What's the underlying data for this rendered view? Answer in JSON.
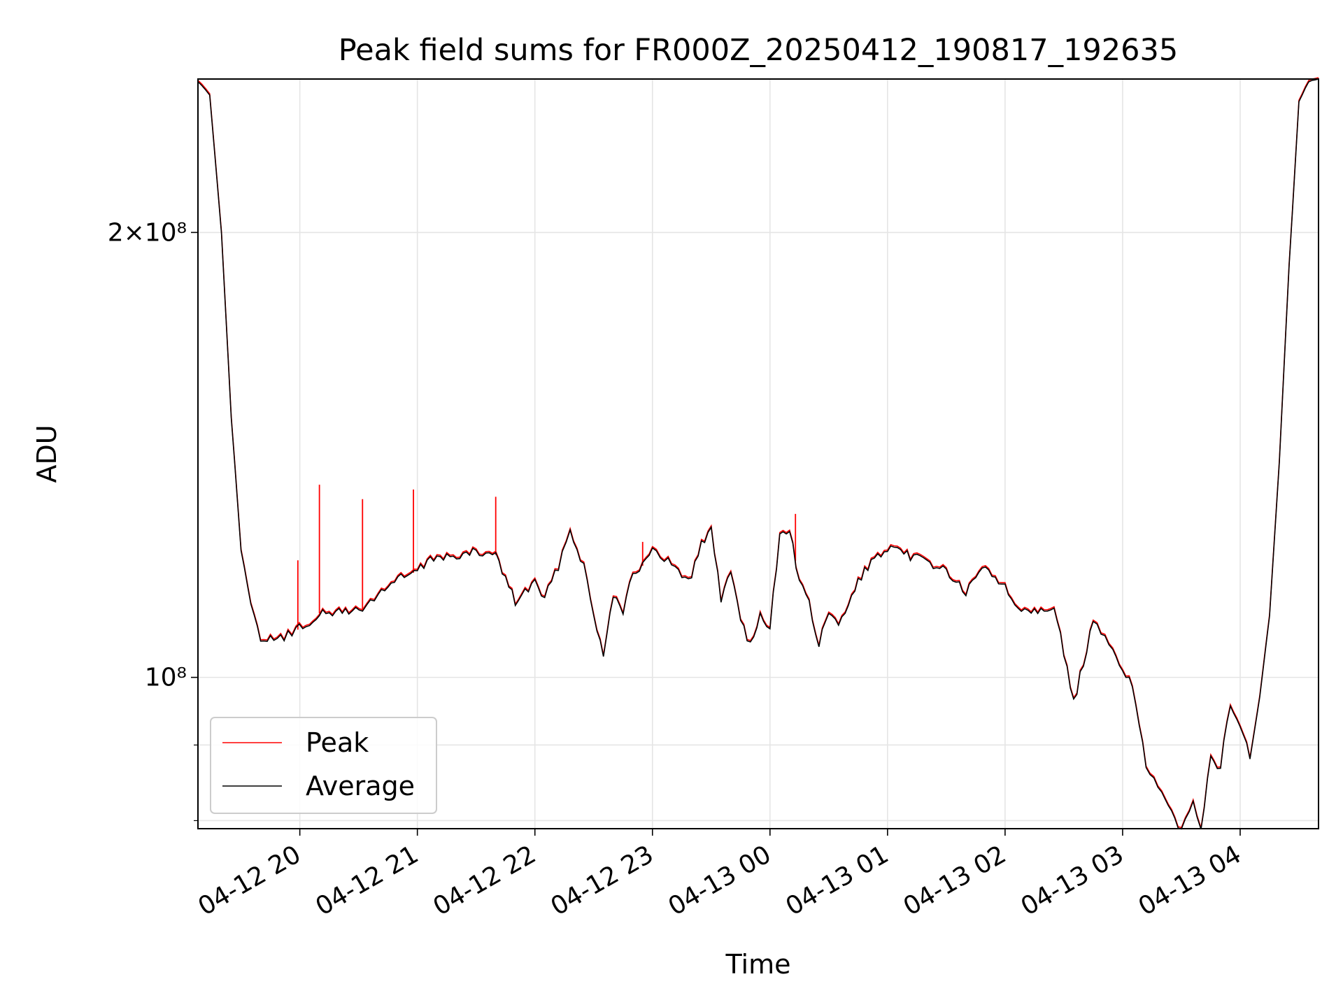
{
  "chart_data": {
    "type": "line",
    "title": "Peak field sums for FR000Z_20250412_190817_192635",
    "xlabel": "Time",
    "ylabel": "ADU",
    "yscale": "log",
    "ylim": [
      79000000,
      254000000
    ],
    "xlim": [
      "2025-04-12 19:08",
      "2025-04-13 04:40"
    ],
    "grid": true,
    "legend_position": "lower-left",
    "x_ticks": [
      {
        "t": "2025-04-12 20:00",
        "label": "04-12 20"
      },
      {
        "t": "2025-04-12 21:00",
        "label": "04-12 21"
      },
      {
        "t": "2025-04-12 22:00",
        "label": "04-12 22"
      },
      {
        "t": "2025-04-12 23:00",
        "label": "04-12 23"
      },
      {
        "t": "2025-04-13 00:00",
        "label": "04-13 00"
      },
      {
        "t": "2025-04-13 01:00",
        "label": "04-13 01"
      },
      {
        "t": "2025-04-13 02:00",
        "label": "04-13 02"
      },
      {
        "t": "2025-04-13 03:00",
        "label": "04-13 03"
      },
      {
        "t": "2025-04-13 04:00",
        "label": "04-13 04"
      }
    ],
    "y_ticks": [
      {
        "value": 200000000,
        "label": "2×10⁸"
      },
      {
        "value": 100000000,
        "label": "10⁸"
      }
    ],
    "y_minor_ticks": [
      80000000,
      90000000
    ],
    "series": [
      {
        "name": "Peak",
        "color": "#ff0000",
        "spikes": [
          {
            "t": "2025-04-12 19:52",
            "y": 106500000
          },
          {
            "t": "2025-04-12 19:59",
            "y": 120000000
          },
          {
            "t": "2025-04-12 20:10",
            "y": 135000000
          },
          {
            "t": "2025-04-12 20:32",
            "y": 132000000
          },
          {
            "t": "2025-04-12 20:58",
            "y": 134000000
          },
          {
            "t": "2025-04-12 21:40",
            "y": 132500000
          },
          {
            "t": "2025-04-12 22:55",
            "y": 123500000
          },
          {
            "t": "2025-04-13 00:13",
            "y": 129000000
          }
        ]
      },
      {
        "name": "Average",
        "color": "#000000",
        "x": [
          "2025-04-12 19:08",
          "2025-04-12 19:14",
          "2025-04-12 19:20",
          "2025-04-12 19:25",
          "2025-04-12 19:30",
          "2025-04-12 19:35",
          "2025-04-12 19:40",
          "2025-04-12 19:45",
          "2025-04-12 19:52",
          "2025-04-12 19:58",
          "2025-04-12 20:05",
          "2025-04-12 20:10",
          "2025-04-12 20:15",
          "2025-04-12 20:20",
          "2025-04-12 20:25",
          "2025-04-12 20:32",
          "2025-04-12 20:40",
          "2025-04-12 20:50",
          "2025-04-12 21:00",
          "2025-04-12 21:10",
          "2025-04-12 21:20",
          "2025-04-12 21:30",
          "2025-04-12 21:40",
          "2025-04-12 21:50",
          "2025-04-12 22:00",
          "2025-04-12 22:05",
          "2025-04-12 22:12",
          "2025-04-12 22:18",
          "2025-04-12 22:25",
          "2025-04-12 22:30",
          "2025-04-12 22:35",
          "2025-04-12 22:40",
          "2025-04-12 22:45",
          "2025-04-12 22:50",
          "2025-04-12 22:55",
          "2025-04-12 23:00",
          "2025-04-12 23:08",
          "2025-04-12 23:15",
          "2025-04-12 23:20",
          "2025-04-12 23:25",
          "2025-04-12 23:30",
          "2025-04-12 23:35",
          "2025-04-12 23:40",
          "2025-04-12 23:45",
          "2025-04-12 23:50",
          "2025-04-12 23:55",
          "2025-04-13 00:00",
          "2025-04-13 00:05",
          "2025-04-13 00:10",
          "2025-04-13 00:15",
          "2025-04-13 00:20",
          "2025-04-13 00:25",
          "2025-04-13 00:30",
          "2025-04-13 00:35",
          "2025-04-13 00:40",
          "2025-04-13 00:45",
          "2025-04-13 00:50",
          "2025-04-13 01:00",
          "2025-04-13 01:10",
          "2025-04-13 01:20",
          "2025-04-13 01:30",
          "2025-04-13 01:40",
          "2025-04-13 01:50",
          "2025-04-13 02:00",
          "2025-04-13 02:05",
          "2025-04-13 02:15",
          "2025-04-13 02:25",
          "2025-04-13 02:35",
          "2025-04-13 02:45",
          "2025-04-13 02:47",
          "2025-04-13 02:55",
          "2025-04-13 03:05",
          "2025-04-13 03:12",
          "2025-04-13 03:20",
          "2025-04-13 03:25",
          "2025-04-13 03:30",
          "2025-04-13 03:36",
          "2025-04-13 03:40",
          "2025-04-13 03:45",
          "2025-04-13 03:50",
          "2025-04-13 03:55",
          "2025-04-13 04:00",
          "2025-04-13 04:05",
          "2025-04-13 04:10",
          "2025-04-13 04:15",
          "2025-04-13 04:20",
          "2025-04-13 04:25",
          "2025-04-13 04:30",
          "2025-04-13 04:35",
          "2025-04-13 04:40"
        ],
        "values": [
          253000000,
          248000000,
          200000000,
          150000000,
          122000000,
          112000000,
          106500000,
          106000000,
          106500000,
          107500000,
          109000000,
          110500000,
          110000000,
          111000000,
          111000000,
          111000000,
          114000000,
          116500000,
          118000000,
          121000000,
          120500000,
          121500000,
          121000000,
          112500000,
          116000000,
          113000000,
          119000000,
          126000000,
          119000000,
          110000000,
          104000000,
          114000000,
          111000000,
          118000000,
          119000000,
          121500000,
          120000000,
          117000000,
          117500000,
          123000000,
          126000000,
          113000000,
          118000000,
          110000000,
          105000000,
          110000000,
          108000000,
          125000000,
          126000000,
          116000000,
          112000000,
          105000000,
          111000000,
          108000000,
          112000000,
          116000000,
          119000000,
          122000000,
          121000000,
          120000000,
          118000000,
          114000000,
          119000000,
          115000000,
          112000000,
          111000000,
          112000000,
          96000000,
          109000000,
          108000000,
          104000000,
          99000000,
          87000000,
          83000000,
          81000000,
          79000000,
          83000000,
          79000000,
          88000000,
          87000000,
          96000000,
          93000000,
          88000000,
          97000000,
          110000000,
          140000000,
          190000000,
          245000000,
          253000000,
          254000000
        ]
      }
    ]
  }
}
